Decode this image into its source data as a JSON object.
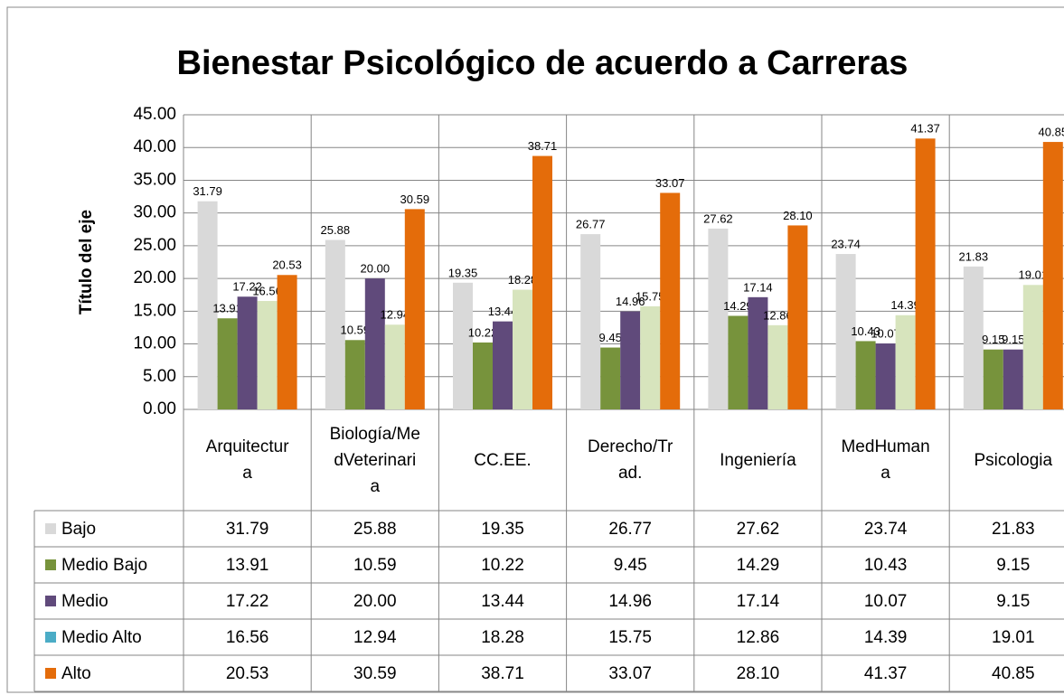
{
  "chart_data": {
    "type": "bar",
    "title": "Bienestar Psicológico de acuerdo a Carreras",
    "y_label": "Título del eje",
    "categories": [
      "Arquitectura",
      "Biología/MedVeterinaria",
      "CC.EE.",
      "Derecho/Trad.",
      "Ingeniería",
      "MedHumana",
      "Psicologia"
    ],
    "series": [
      {
        "name": "Bajo",
        "color": "#d9d9d9",
        "values": [
          31.79,
          25.88,
          19.35,
          26.77,
          27.62,
          23.74,
          21.83
        ],
        "value_labels": [
          "31.79",
          "25.88",
          "19.35",
          "26.77",
          "27.62",
          "23.74",
          "21.83"
        ]
      },
      {
        "name": "Medio Bajo",
        "color": "#77933c",
        "values": [
          13.91,
          10.59,
          10.22,
          9.45,
          14.29,
          10.43,
          9.15
        ],
        "value_labels": [
          "13.91",
          "10.59",
          "10.22",
          "9.45",
          "14.29",
          "10.43",
          "9.15"
        ]
      },
      {
        "name": "Medio",
        "color": "#604a7b",
        "values": [
          17.22,
          20,
          13.44,
          14.96,
          17.14,
          10.07,
          9.15
        ],
        "value_labels": [
          "17.22",
          "20.00",
          "13.44",
          "14.96",
          "17.14",
          "10.07",
          "9.15"
        ]
      },
      {
        "name": "Medio Alto",
        "color": "#d7e4bd",
        "key_color": "#4bacc6",
        "values": [
          16.56,
          12.94,
          18.28,
          15.75,
          12.86,
          14.39,
          19.01
        ],
        "value_labels": [
          "16.56",
          "12.94",
          "18.28",
          "15.75",
          "12.86",
          "14.39",
          "19.01"
        ]
      },
      {
        "name": "Alto",
        "color": "#e46c0a",
        "values": [
          20.53,
          30.59,
          38.71,
          33.07,
          28.1,
          41.37,
          40.85
        ],
        "value_labels": [
          "20.53",
          "30.59",
          "38.71",
          "33.07",
          "28.10",
          "41.37",
          "40.85"
        ]
      }
    ],
    "ylim": [
      0,
      45
    ],
    "yticks": [
      {
        "value": 0,
        "label": "0.00"
      },
      {
        "value": 5,
        "label": "5.00"
      },
      {
        "value": 10,
        "label": "10.00"
      },
      {
        "value": 15,
        "label": "15.00"
      },
      {
        "value": 20,
        "label": "20.00"
      },
      {
        "value": 25,
        "label": "25.00"
      },
      {
        "value": 30,
        "label": "30.00"
      },
      {
        "value": 35,
        "label": "35.00"
      },
      {
        "value": 40,
        "label": "40.00"
      },
      {
        "value": 45,
        "label": "45.00"
      }
    ],
    "grid": true,
    "data_table": true
  }
}
